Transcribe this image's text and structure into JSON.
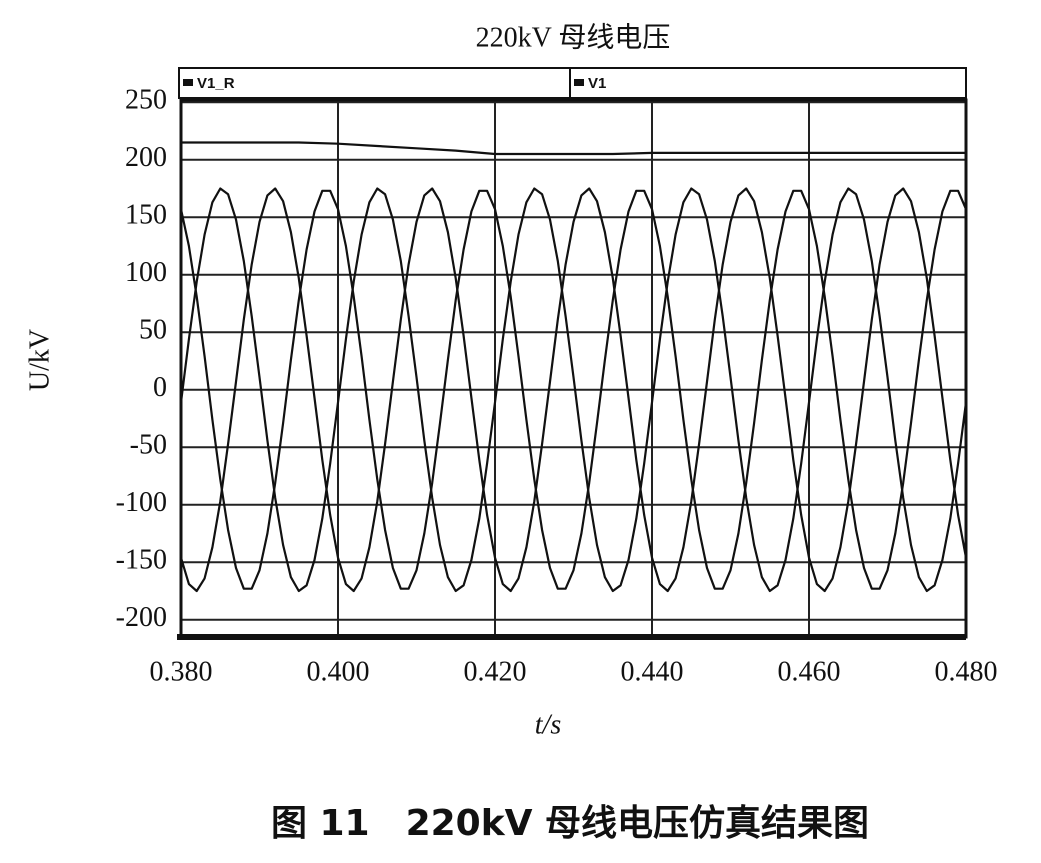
{
  "chart_data": {
    "type": "line",
    "title": "220kV 母线电压",
    "xlabel": "t/s",
    "ylabel": "U/kV",
    "caption": "图 11　220kV 母线电压仿真结果图",
    "grid": true,
    "xlim": [
      0.38,
      0.48
    ],
    "ylim": [
      -215,
      252
    ],
    "xticks": [
      {
        "value": 0.38,
        "label": "0.380"
      },
      {
        "value": 0.4,
        "label": "0.400"
      },
      {
        "value": 0.42,
        "label": "0.420"
      },
      {
        "value": 0.44,
        "label": "0.440"
      },
      {
        "value": 0.46,
        "label": "0.460"
      },
      {
        "value": 0.48,
        "label": "0.480"
      }
    ],
    "yticks": [
      250,
      200,
      150,
      100,
      50,
      0,
      -50,
      -100,
      -150,
      -200
    ],
    "x": [
      0.38,
      0.381,
      0.382,
      0.383,
      0.384,
      0.385,
      0.386,
      0.387,
      0.388,
      0.389,
      0.39,
      0.391,
      0.392,
      0.393,
      0.394,
      0.395,
      0.396,
      0.397,
      0.398,
      0.399,
      0.4,
      0.401,
      0.402,
      0.403,
      0.404,
      0.405,
      0.406,
      0.407,
      0.408,
      0.409,
      0.41,
      0.411,
      0.412,
      0.413,
      0.414,
      0.415,
      0.416,
      0.417,
      0.418,
      0.419,
      0.42,
      0.421,
      0.422,
      0.423,
      0.424,
      0.425,
      0.426,
      0.427,
      0.428,
      0.429,
      0.43,
      0.431,
      0.432,
      0.433,
      0.434,
      0.435,
      0.436,
      0.437,
      0.438,
      0.439,
      0.44,
      0.441,
      0.442,
      0.443,
      0.444,
      0.445,
      0.446,
      0.447,
      0.448,
      0.449,
      0.45,
      0.451,
      0.452,
      0.453,
      0.454,
      0.455,
      0.456,
      0.457,
      0.458,
      0.459,
      0.46,
      0.461,
      0.462,
      0.463,
      0.464,
      0.465,
      0.466,
      0.467,
      0.468,
      0.469,
      0.47,
      0.471,
      0.472,
      0.473,
      0.474,
      0.475,
      0.476,
      0.477,
      0.478,
      0.479,
      0.48
    ],
    "series": [
      {
        "name": "V1_R",
        "color": "#111111",
        "x": [
          0.38,
          0.385,
          0.39,
          0.395,
          0.4,
          0.405,
          0.41,
          0.415,
          0.42,
          0.425,
          0.43,
          0.435,
          0.44,
          0.445,
          0.45,
          0.455,
          0.46,
          0.465,
          0.47,
          0.475,
          0.48
        ],
        "values": [
          215,
          215,
          215,
          215,
          214,
          212,
          210,
          208,
          205,
          205,
          205,
          205,
          206,
          206,
          206,
          206,
          206,
          206,
          206,
          206,
          206
        ]
      },
      {
        "name": "V1",
        "color": "#111111",
        "values": [
          [
            -11,
            44,
            94,
            135,
            163,
            175,
            170,
            148,
            112,
            64,
            11,
            -44,
            -94,
            -135,
            -163,
            -175,
            -170,
            -148,
            -112,
            -64,
            -11,
            44,
            94,
            135,
            163,
            175,
            170,
            148,
            112,
            64,
            11,
            -44,
            -94,
            -135,
            -163,
            -175,
            -170,
            -148,
            -112,
            -64,
            -11,
            44,
            94,
            135,
            163,
            175,
            170,
            148,
            112,
            64,
            11,
            -44,
            -94,
            -135,
            -163,
            -175,
            -170,
            -148,
            -112,
            -64,
            -11,
            44,
            94,
            135,
            163,
            175,
            170,
            148,
            112,
            64,
            11,
            -44,
            -94,
            -135,
            -163,
            -175,
            -170,
            -148,
            -112,
            -64,
            -11,
            44,
            94,
            135,
            163,
            175,
            170,
            148,
            112,
            64,
            11,
            -44,
            -94,
            -135,
            -163,
            -175,
            -170,
            -148,
            -112,
            -64,
            -11
          ],
          [
            -146,
            -169,
            -175,
            -164,
            -137,
            -97,
            -47,
            7,
            61,
            109,
            146,
            169,
            175,
            164,
            137,
            97,
            47,
            -7,
            -61,
            -109,
            -146,
            -169,
            -175,
            -164,
            -137,
            -97,
            -47,
            7,
            61,
            109,
            146,
            169,
            175,
            164,
            137,
            97,
            47,
            -7,
            -61,
            -109,
            -146,
            -169,
            -175,
            -164,
            -137,
            -97,
            -47,
            7,
            61,
            109,
            146,
            169,
            175,
            164,
            137,
            97,
            47,
            -7,
            -61,
            -109,
            -146,
            -169,
            -175,
            -164,
            -137,
            -97,
            -47,
            7,
            61,
            109,
            146,
            169,
            175,
            164,
            137,
            97,
            47,
            -7,
            -61,
            -109,
            -146,
            -169,
            -175,
            -164,
            -137,
            -97,
            -47,
            7,
            61,
            109,
            146,
            169,
            175,
            164,
            137,
            97,
            47,
            -7,
            -61,
            -109,
            -146
          ],
          [
            157,
            125,
            81,
            29,
            -26,
            -78,
            -122,
            -155,
            -173,
            -173,
            -157,
            -125,
            -81,
            -29,
            26,
            78,
            122,
            155,
            173,
            173,
            157,
            125,
            81,
            29,
            -26,
            -78,
            -122,
            -155,
            -173,
            -173,
            -157,
            -125,
            -81,
            -29,
            26,
            78,
            122,
            155,
            173,
            173,
            157,
            125,
            81,
            29,
            -26,
            -78,
            -122,
            -155,
            -173,
            -173,
            -157,
            -125,
            -81,
            -29,
            26,
            78,
            122,
            155,
            173,
            173,
            157,
            125,
            81,
            29,
            -26,
            -78,
            -122,
            -155,
            -173,
            -173,
            -157,
            -125,
            -81,
            -29,
            26,
            78,
            122,
            155,
            173,
            173,
            157,
            125,
            81,
            29,
            -26,
            -78,
            -122,
            -155,
            -173,
            -173,
            -157,
            -125,
            -81,
            -29,
            26,
            78,
            122,
            155,
            173,
            173,
            157
          ]
        ]
      }
    ]
  }
}
